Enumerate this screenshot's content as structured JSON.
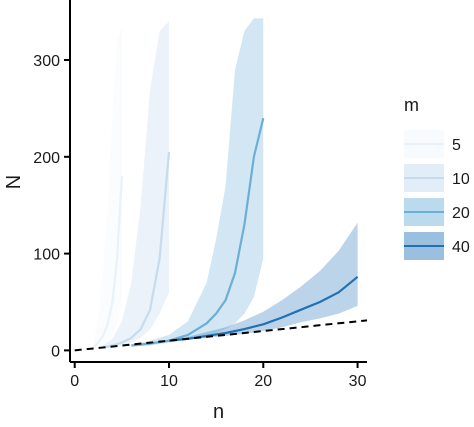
{
  "chart_data": {
    "type": "line",
    "xlabel": "n",
    "ylabel": "N",
    "xlim": [
      -0.5,
      31
    ],
    "ylim": [
      -12,
      362
    ],
    "x_ticks": [
      0,
      10,
      20,
      30
    ],
    "y_ticks": [
      0,
      100,
      200,
      300
    ],
    "grid": false,
    "legend": {
      "title": "m",
      "placement": "right"
    },
    "reference_line": {
      "style": "dashed",
      "color": "#000000",
      "x": [
        0,
        31
      ],
      "y": [
        0,
        31
      ]
    },
    "series": [
      {
        "name": "5",
        "color": "#f2f7fd",
        "line_color": "#e9f2fa",
        "band_opacity": 0.35,
        "x": [
          2,
          2.5,
          3,
          3.5,
          4,
          4.5,
          5
        ],
        "y": [
          3,
          8,
          15,
          27,
          50,
          95,
          180
        ],
        "lower": [
          1,
          2,
          4,
          8,
          15,
          28,
          50
        ],
        "upper": [
          8,
          35,
          80,
          150,
          240,
          320,
          335
        ]
      },
      {
        "name": "10",
        "color": "#c6dbef",
        "line_color": "#c6dbef",
        "band_opacity": 0.35,
        "x": [
          3,
          4,
          5,
          6,
          7,
          8,
          9,
          10
        ],
        "y": [
          3,
          5,
          8,
          13,
          22,
          42,
          95,
          205
        ],
        "lower": [
          2,
          3,
          5,
          8,
          13,
          22,
          38,
          60
        ],
        "upper": [
          5,
          12,
          30,
          70,
          150,
          270,
          330,
          340
        ]
      },
      {
        "name": "20",
        "color": "#6baed6",
        "line_color": "#6baed6",
        "band_opacity": 0.3,
        "x": [
          6,
          8,
          10,
          12,
          14,
          15,
          16,
          17,
          18,
          19,
          20
        ],
        "y": [
          5,
          7,
          10,
          16,
          28,
          38,
          52,
          80,
          130,
          200,
          240
        ],
        "lower": [
          4,
          5,
          8,
          11,
          15,
          18,
          22,
          28,
          38,
          55,
          95
        ],
        "upper": [
          6,
          10,
          16,
          30,
          70,
          115,
          170,
          290,
          330,
          343,
          343
        ]
      },
      {
        "name": "40",
        "color": "#2171b5",
        "line_color": "#2171b5",
        "band_opacity": 0.3,
        "x": [
          10,
          12,
          14,
          16,
          18,
          20,
          22,
          24,
          26,
          28,
          30
        ],
        "y": [
          10,
          12,
          15,
          18,
          22,
          27,
          34,
          42,
          50,
          60,
          76
        ],
        "lower": [
          10,
          11,
          13,
          15,
          17,
          20,
          24,
          29,
          33,
          38,
          46
        ],
        "upper": [
          10,
          14,
          19,
          24,
          31,
          40,
          52,
          66,
          82,
          103,
          132
        ]
      }
    ]
  }
}
